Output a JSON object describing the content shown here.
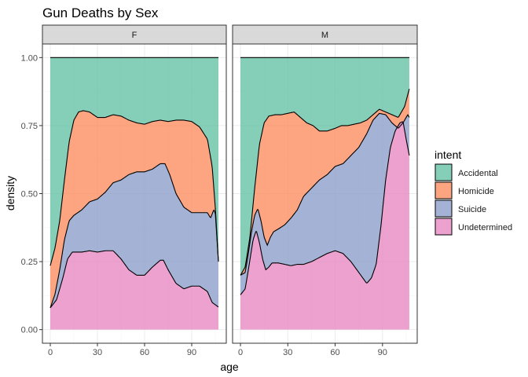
{
  "chart_data": {
    "type": "area",
    "subtype": "stacked-conditional-density",
    "title": "Gun Deaths by Sex",
    "xlabel": "age",
    "ylabel": "density",
    "xlim": [
      -5,
      112
    ],
    "ylim": [
      -0.05,
      1.05
    ],
    "x_ticks": [
      0,
      30,
      60,
      90
    ],
    "y_ticks": [
      0,
      0.25,
      0.5,
      0.75,
      1.0
    ],
    "y_tick_labels": [
      "0.00",
      "0.25",
      "0.50",
      "0.75",
      "1.00"
    ],
    "legend_title": "intent",
    "legend_position": "right",
    "grid": true,
    "series_order": [
      "Accidental",
      "Homicide",
      "Suicide",
      "Undetermined"
    ],
    "colors": {
      "Accidental": "#66C2A5",
      "Homicide": "#FC8D62",
      "Suicide": "#8DA0CB",
      "Undetermined": "#E78AC3"
    },
    "panels": [
      {
        "label": "F",
        "x_range": [
          0,
          107
        ],
        "boundaries": {
          "Homicide": [
            [
              0,
              0.235
            ],
            [
              3,
              0.3
            ],
            [
              6,
              0.4
            ],
            [
              9,
              0.55
            ],
            [
              12,
              0.69
            ],
            [
              15,
              0.77
            ],
            [
              18,
              0.8
            ],
            [
              21,
              0.805
            ],
            [
              25,
              0.8
            ],
            [
              30,
              0.78
            ],
            [
              35,
              0.78
            ],
            [
              40,
              0.79
            ],
            [
              45,
              0.785
            ],
            [
              50,
              0.77
            ],
            [
              55,
              0.76
            ],
            [
              60,
              0.755
            ],
            [
              65,
              0.765
            ],
            [
              70,
              0.77
            ],
            [
              75,
              0.765
            ],
            [
              80,
              0.77
            ],
            [
              85,
              0.77
            ],
            [
              90,
              0.765
            ],
            [
              95,
              0.745
            ],
            [
              100,
              0.7
            ],
            [
              103,
              0.6
            ],
            [
              105,
              0.45
            ],
            [
              107,
              0.25
            ]
          ],
          "Suicide": [
            [
              0,
              0.08
            ],
            [
              3,
              0.13
            ],
            [
              6,
              0.22
            ],
            [
              9,
              0.33
            ],
            [
              12,
              0.4
            ],
            [
              15,
              0.42
            ],
            [
              20,
              0.44
            ],
            [
              25,
              0.47
            ],
            [
              30,
              0.48
            ],
            [
              35,
              0.505
            ],
            [
              40,
              0.54
            ],
            [
              45,
              0.55
            ],
            [
              50,
              0.57
            ],
            [
              55,
              0.58
            ],
            [
              60,
              0.58
            ],
            [
              65,
              0.59
            ],
            [
              70,
              0.61
            ],
            [
              73,
              0.61
            ],
            [
              76,
              0.57
            ],
            [
              80,
              0.5
            ],
            [
              85,
              0.45
            ],
            [
              90,
              0.43
            ],
            [
              95,
              0.43
            ],
            [
              98,
              0.43
            ],
            [
              100,
              0.43
            ],
            [
              102,
              0.41
            ],
            [
              104,
              0.44
            ],
            [
              105,
              0.43
            ],
            [
              107,
              0.25
            ]
          ],
          "Undetermined": [
            [
              0,
              0.08
            ],
            [
              4,
              0.11
            ],
            [
              8,
              0.19
            ],
            [
              11,
              0.26
            ],
            [
              14,
              0.285
            ],
            [
              20,
              0.285
            ],
            [
              25,
              0.29
            ],
            [
              30,
              0.285
            ],
            [
              35,
              0.29
            ],
            [
              40,
              0.29
            ],
            [
              45,
              0.26
            ],
            [
              50,
              0.22
            ],
            [
              55,
              0.2
            ],
            [
              60,
              0.2
            ],
            [
              65,
              0.23
            ],
            [
              70,
              0.255
            ],
            [
              72,
              0.255
            ],
            [
              75,
              0.22
            ],
            [
              80,
              0.17
            ],
            [
              85,
              0.15
            ],
            [
              90,
              0.16
            ],
            [
              95,
              0.16
            ],
            [
              100,
              0.14
            ],
            [
              103,
              0.1
            ],
            [
              107,
              0.083
            ]
          ]
        }
      },
      {
        "label": "M",
        "x_range": [
          0,
          107
        ],
        "boundaries": {
          "Homicide": [
            [
              0,
              0.2
            ],
            [
              3,
              0.23
            ],
            [
              6,
              0.34
            ],
            [
              9,
              0.52
            ],
            [
              12,
              0.68
            ],
            [
              15,
              0.76
            ],
            [
              18,
              0.785
            ],
            [
              22,
              0.79
            ],
            [
              26,
              0.79
            ],
            [
              30,
              0.795
            ],
            [
              34,
              0.8
            ],
            [
              38,
              0.78
            ],
            [
              42,
              0.76
            ],
            [
              46,
              0.75
            ],
            [
              50,
              0.73
            ],
            [
              55,
              0.73
            ],
            [
              60,
              0.74
            ],
            [
              64,
              0.75
            ],
            [
              68,
              0.75
            ],
            [
              72,
              0.755
            ],
            [
              76,
              0.76
            ],
            [
              80,
              0.77
            ],
            [
              84,
              0.79
            ],
            [
              88,
              0.81
            ],
            [
              92,
              0.8
            ],
            [
              96,
              0.79
            ],
            [
              100,
              0.78
            ],
            [
              104,
              0.82
            ],
            [
              107,
              0.885
            ]
          ],
          "Suicide": [
            [
              0,
              0.2
            ],
            [
              3,
              0.21
            ],
            [
              5,
              0.28
            ],
            [
              7,
              0.36
            ],
            [
              9,
              0.42
            ],
            [
              11,
              0.445
            ],
            [
              13,
              0.4
            ],
            [
              15,
              0.34
            ],
            [
              17,
              0.31
            ],
            [
              19,
              0.34
            ],
            [
              21,
              0.36
            ],
            [
              24,
              0.37
            ],
            [
              28,
              0.385
            ],
            [
              32,
              0.41
            ],
            [
              36,
              0.44
            ],
            [
              40,
              0.49
            ],
            [
              45,
              0.52
            ],
            [
              50,
              0.55
            ],
            [
              55,
              0.57
            ],
            [
              60,
              0.6
            ],
            [
              65,
              0.61
            ],
            [
              70,
              0.64
            ],
            [
              75,
              0.67
            ],
            [
              80,
              0.72
            ],
            [
              84,
              0.77
            ],
            [
              88,
              0.795
            ],
            [
              92,
              0.79
            ],
            [
              96,
              0.76
            ],
            [
              100,
              0.74
            ],
            [
              103,
              0.76
            ],
            [
              106,
              0.79
            ],
            [
              107,
              0.78
            ]
          ],
          "Undetermined": [
            [
              0,
              0.128
            ],
            [
              3,
              0.15
            ],
            [
              5,
              0.22
            ],
            [
              8,
              0.33
            ],
            [
              10,
              0.365
            ],
            [
              12,
              0.32
            ],
            [
              14,
              0.26
            ],
            [
              16,
              0.22
            ],
            [
              18,
              0.23
            ],
            [
              20,
              0.245
            ],
            [
              24,
              0.245
            ],
            [
              28,
              0.24
            ],
            [
              32,
              0.235
            ],
            [
              36,
              0.24
            ],
            [
              40,
              0.24
            ],
            [
              45,
              0.25
            ],
            [
              50,
              0.265
            ],
            [
              55,
              0.28
            ],
            [
              60,
              0.29
            ],
            [
              65,
              0.28
            ],
            [
              70,
              0.25
            ],
            [
              75,
              0.21
            ],
            [
              80,
              0.17
            ],
            [
              83,
              0.19
            ],
            [
              86,
              0.24
            ],
            [
              89,
              0.38
            ],
            [
              92,
              0.55
            ],
            [
              95,
              0.67
            ],
            [
              98,
              0.73
            ],
            [
              101,
              0.76
            ],
            [
              103,
              0.765
            ],
            [
              105,
              0.7
            ],
            [
              107,
              0.64
            ]
          ]
        }
      }
    ]
  }
}
